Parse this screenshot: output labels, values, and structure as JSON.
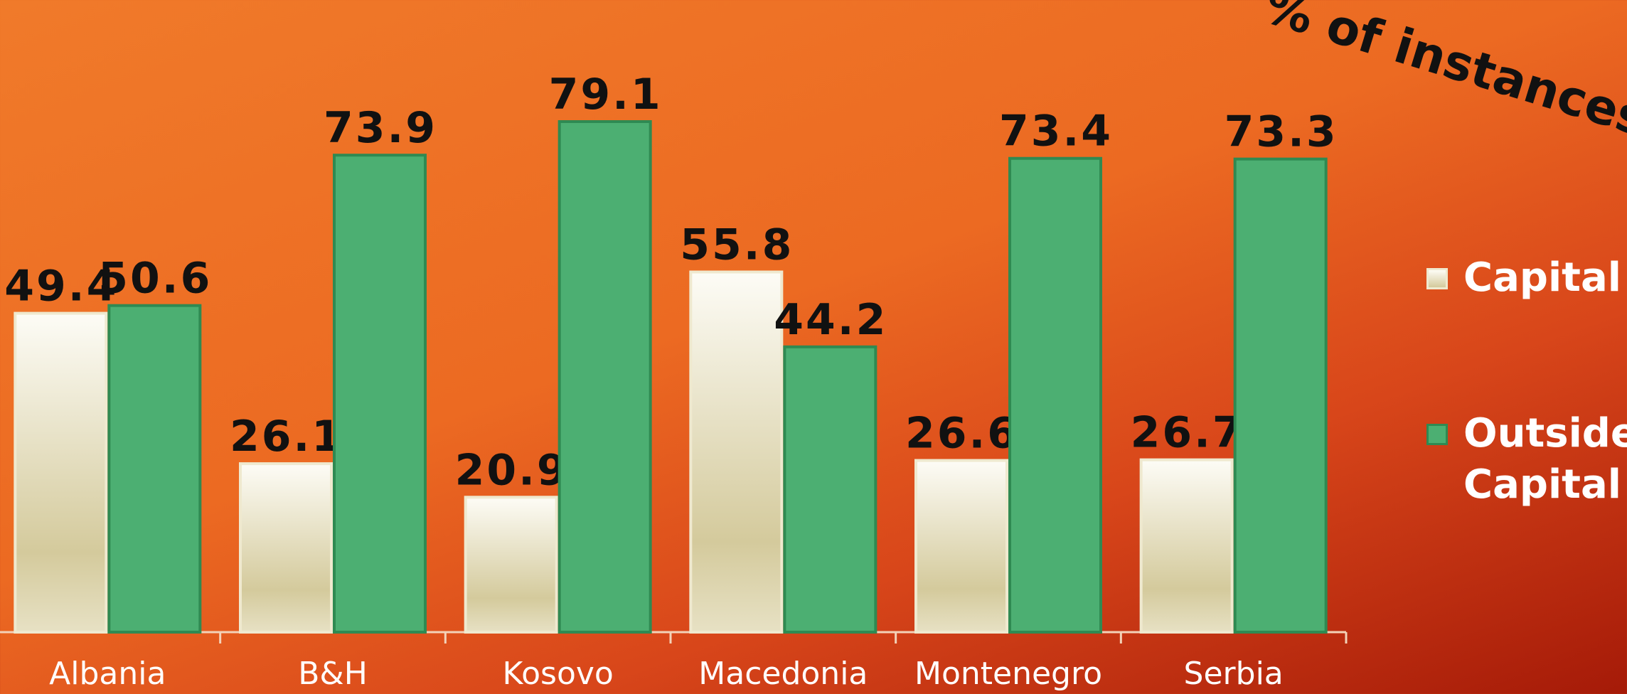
{
  "chart_data": {
    "type": "bar",
    "annotation": "% of instances",
    "categories": [
      "Albania",
      "B&H",
      "Kosovo",
      "Macedonia",
      "Montenegro",
      "Serbia"
    ],
    "series": [
      {
        "name": "Capital",
        "color": "#e8e2c4",
        "values": [
          49.4,
          26.1,
          20.9,
          55.8,
          26.6,
          26.7
        ]
      },
      {
        "name": "Outside Capital",
        "color": "#4caf72",
        "values": [
          50.6,
          73.9,
          79.1,
          44.2,
          73.4,
          73.3
        ]
      }
    ],
    "legend": "right"
  }
}
